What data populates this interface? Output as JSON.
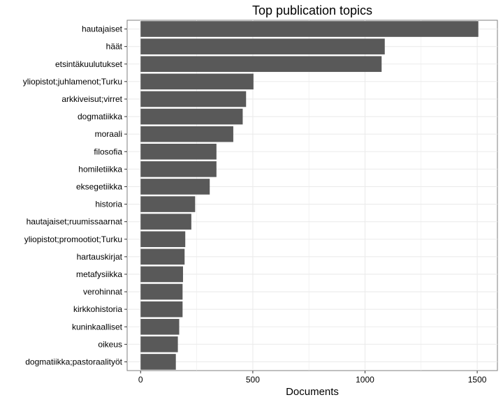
{
  "chart_data": {
    "type": "bar",
    "orientation": "horizontal",
    "title": "Top publication topics",
    "xlabel": "Documents",
    "ylabel": "",
    "xlim": [
      -60,
      1590
    ],
    "xticks": [
      0,
      500,
      1000,
      1500
    ],
    "grid": true,
    "legend": "none",
    "categories": [
      "hautajaiset",
      "häät",
      "etsintäkuulutukset",
      "yliopistot;juhlamenot;Turku",
      "arkkiveisut;virret",
      "dogmatiikka",
      "moraali",
      "filosofia",
      "homiletiikka",
      "eksegetiikka",
      "historia",
      "hautajaiset;ruumissaarnat",
      "yliopistot;promootiot;Turku",
      "hartauskirjat",
      "metafysiikka",
      "verohinnat",
      "kirkkohistoria",
      "kuninkaalliset",
      "oikeus",
      "dogmatiikka;pastoraalityöt"
    ],
    "values": [
      1505,
      1088,
      1074,
      503,
      470,
      455,
      413,
      338,
      338,
      308,
      243,
      226,
      199,
      196,
      189,
      187,
      187,
      172,
      166,
      157
    ],
    "colors": {
      "bar": "#595959",
      "grid": "#ebebeb",
      "panel_border": "#7f7f7f",
      "text": "#000000"
    }
  }
}
